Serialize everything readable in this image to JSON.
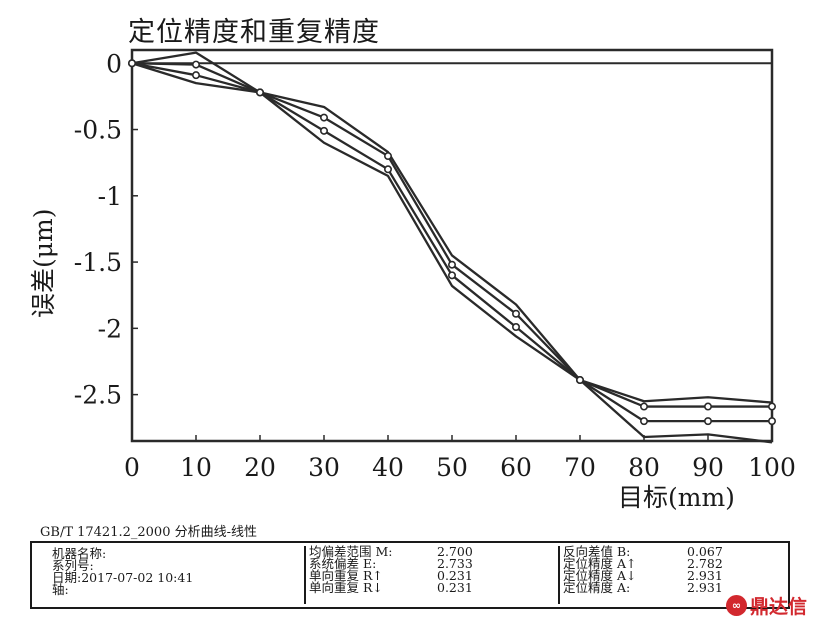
{
  "chart_data": {
    "type": "line",
    "title": "定位精度和重复精度",
    "xlabel": "目标(mm)",
    "ylabel": "误差(μm)",
    "xlim": [
      0,
      100
    ],
    "ylim": [
      -2.85,
      0.1
    ],
    "x_ticks": [
      "0",
      "10",
      "20",
      "30",
      "40",
      "50",
      "60",
      "70",
      "80",
      "90",
      "100"
    ],
    "y_ticks": [
      "0",
      "-0.5",
      "-1",
      "-1.5",
      "-2",
      "-2.5"
    ],
    "x_tick_values": [
      0,
      10,
      20,
      30,
      40,
      50,
      60,
      70,
      80,
      90,
      100
    ],
    "y_tick_values": [
      0,
      -0.5,
      -1,
      -1.5,
      -2,
      -2.5
    ],
    "x": [
      0,
      10,
      20,
      30,
      40,
      50,
      60,
      70,
      80,
      90,
      100
    ],
    "series": [
      {
        "values": [
          0,
          0.08,
          -0.22,
          -0.33,
          -0.67,
          -1.45,
          -1.82,
          -2.39,
          -2.55,
          -2.52,
          -2.56
        ],
        "markers": false
      },
      {
        "values": [
          0,
          -0.15,
          -0.22,
          -0.6,
          -0.85,
          -1.68,
          -2.06,
          -2.39,
          -2.82,
          -2.8,
          -2.86
        ],
        "markers": false
      },
      {
        "values": [
          0,
          -0.01,
          -0.22,
          -0.41,
          -0.7,
          -1.52,
          -1.89,
          -2.39,
          -2.59,
          -2.59,
          -2.59
        ],
        "markers": true
      },
      {
        "values": [
          0,
          -0.09,
          -0.22,
          -0.51,
          -0.8,
          -1.6,
          -1.99,
          -2.39,
          -2.7,
          -2.7,
          -2.7
        ],
        "markers": true
      }
    ],
    "reference_line": 0,
    "grid": false,
    "line_color": "#2a2a2a"
  },
  "footer": {
    "standard": "GB/T 17421.2_2000 分析曲线-线性",
    "machine_name_label": "机器名称:",
    "serial_label": "系列号:",
    "date_label": "日期:2017-07-02 10:41",
    "axis_label": "轴:",
    "mean_range_label": "均偏差范围 M:",
    "mean_range_value": "2.700",
    "system_dev_label": "系统偏差 E:",
    "system_dev_value": "2.733",
    "repeat_up_label": "单向重复 R↑",
    "repeat_up_value": "0.231",
    "repeat_down_label": "单向重复 R↓",
    "repeat_down_value": "0.231",
    "reverse_label": "反向差值 B:",
    "reverse_value": "0.067",
    "pos_up_label": "定位精度 A↑",
    "pos_up_value": "2.782",
    "pos_down_label": "定位精度 A↓",
    "pos_down_value": "2.931",
    "pos_label": "定位精度 A:",
    "pos_value": "2.931"
  },
  "brand": {
    "text": "鼎达信",
    "icon": "logo-circle-icon",
    "color": "#d2282e"
  }
}
